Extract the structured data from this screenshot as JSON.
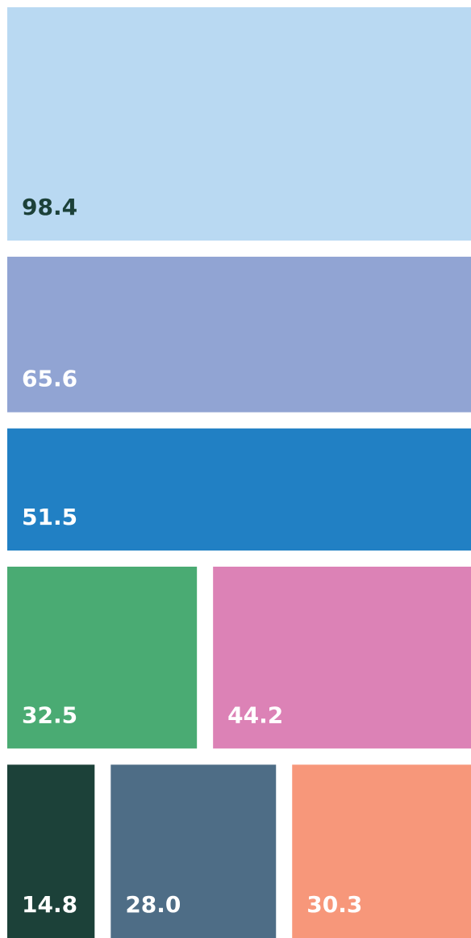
{
  "chart_data": {
    "type": "treemap",
    "values": [
      98.4,
      65.6,
      51.5,
      32.5,
      44.2,
      14.8,
      28.0,
      30.3
    ],
    "value_labels": [
      "98.4",
      "65.6",
      "51.5",
      "32.5",
      "44.2",
      "14.8",
      "28.0",
      "30.3"
    ],
    "colors": [
      "#b9d9f2",
      "#91a4d3",
      "#2180c4",
      "#4aab73",
      "#dc82b6",
      "#1c4139",
      "#4e6d86",
      "#f7977a"
    ]
  }
}
